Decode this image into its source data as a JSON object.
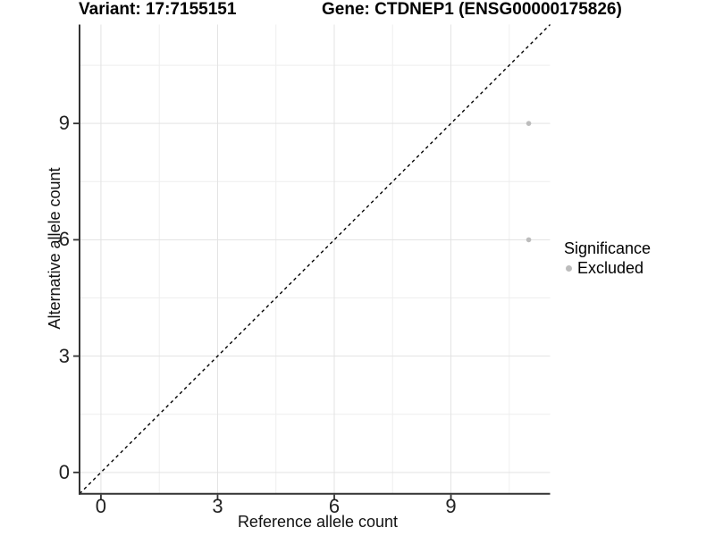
{
  "chart_data": {
    "type": "scatter",
    "titles": {
      "variant": "Variant: 17:7155151",
      "gene": "Gene: CTDNEP1 (ENSG00000175826)"
    },
    "xlabel": "Reference allele count",
    "ylabel": "Alternative allele count",
    "xlim": [
      -0.55,
      11.55
    ],
    "ylim": [
      -0.55,
      11.55
    ],
    "x_major_ticks": [
      0,
      3,
      6,
      9
    ],
    "y_major_ticks": [
      0,
      3,
      6,
      9
    ],
    "x_minor_gridlines": [
      1.5,
      4.5,
      7.5,
      10.5
    ],
    "y_minor_gridlines": [
      1.5,
      4.5,
      7.5,
      10.5
    ],
    "grid": true,
    "series": [
      {
        "name": "Excluded",
        "color": "#bcbcbc",
        "points": [
          {
            "x": 11,
            "y": 9
          },
          {
            "x": 11,
            "y": 6
          }
        ]
      }
    ],
    "reference_line": {
      "equation": "y = x",
      "style": "dashed",
      "color": "#000000"
    },
    "legend": {
      "title": "Significance",
      "position": "right",
      "items": [
        {
          "label": "Excluded",
          "color": "#bcbcbc"
        }
      ]
    },
    "colors": {
      "background": "#ffffff",
      "axis_line": "#333333",
      "tick_mark": "#333333",
      "grid_major": "#e3e3e3",
      "grid_minor": "#eeeeee",
      "point": "#bcbcbc",
      "identity_line": "#000000"
    }
  }
}
